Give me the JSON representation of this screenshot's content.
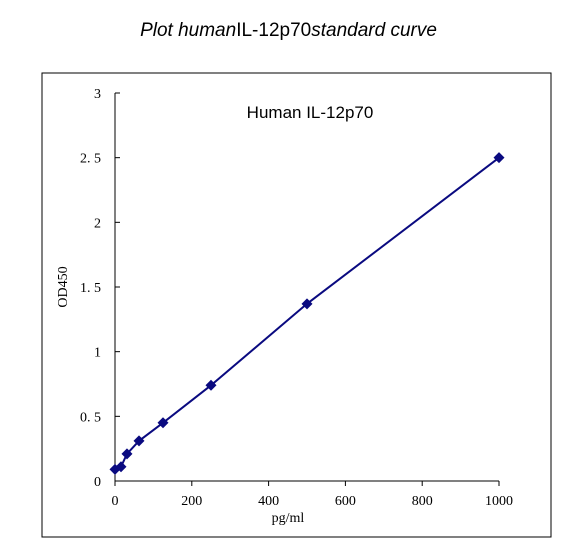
{
  "title": {
    "part1": "Plot human",
    "part2": "IL-12p70",
    "part3": "standard curve"
  },
  "chart_data": {
    "type": "line",
    "title": "Human IL-12p70",
    "xlabel": "pg/ml",
    "ylabel": "OD450",
    "xlim": [
      0,
      1000
    ],
    "ylim": [
      0,
      3
    ],
    "x_ticks": [
      0,
      200,
      400,
      600,
      800,
      1000
    ],
    "y_ticks": [
      0,
      0.5,
      1,
      1.5,
      2,
      2.5,
      3
    ],
    "y_tick_labels": [
      "0",
      "0. 5",
      "1",
      "1. 5",
      "2",
      "2. 5",
      "3"
    ],
    "grid": false,
    "marker": "diamond",
    "series": [
      {
        "x": [
          0,
          15.6,
          31.2,
          62.5,
          125,
          250,
          500,
          1000
        ],
        "y": [
          0.09,
          0.11,
          0.21,
          0.31,
          0.45,
          0.74,
          1.37,
          2.5
        ],
        "color": "#0a0a80"
      }
    ]
  }
}
